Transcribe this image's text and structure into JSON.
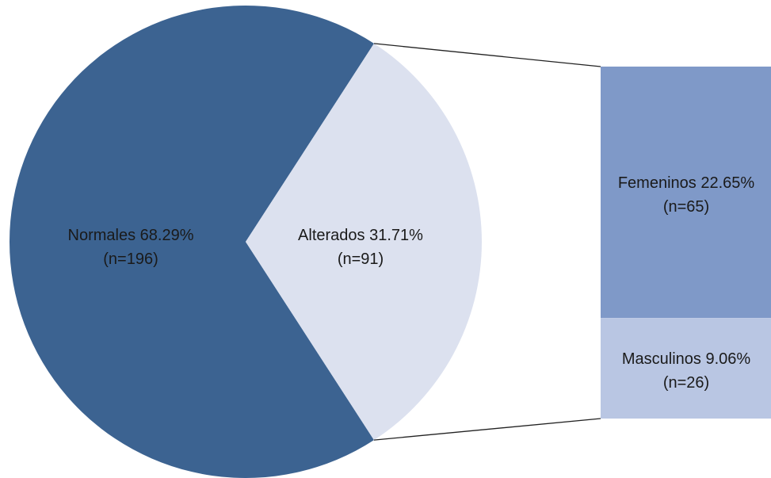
{
  "chart_data": {
    "type": "pie",
    "main_slices": [
      {
        "label": "Normales 68.29%",
        "count_label": "(n=196)",
        "value": 196,
        "percent": 68.29,
        "color": "#3c6391"
      },
      {
        "label": "Alterados 31.71%",
        "count_label": "(n=91)",
        "value": 91,
        "percent": 31.71,
        "color": "#dce1ef"
      }
    ],
    "breakdown": {
      "parent": "Alterados",
      "segments": [
        {
          "label": "Femeninos 22.65%",
          "count_label": "(n=65)",
          "value": 65,
          "percent": 22.65,
          "color": "#7f99c8"
        },
        {
          "label": "Masculinos 9.06%",
          "count_label": "(n=26)",
          "value": 26,
          "percent": 9.06,
          "color": "#b9c6e3"
        }
      ]
    }
  }
}
